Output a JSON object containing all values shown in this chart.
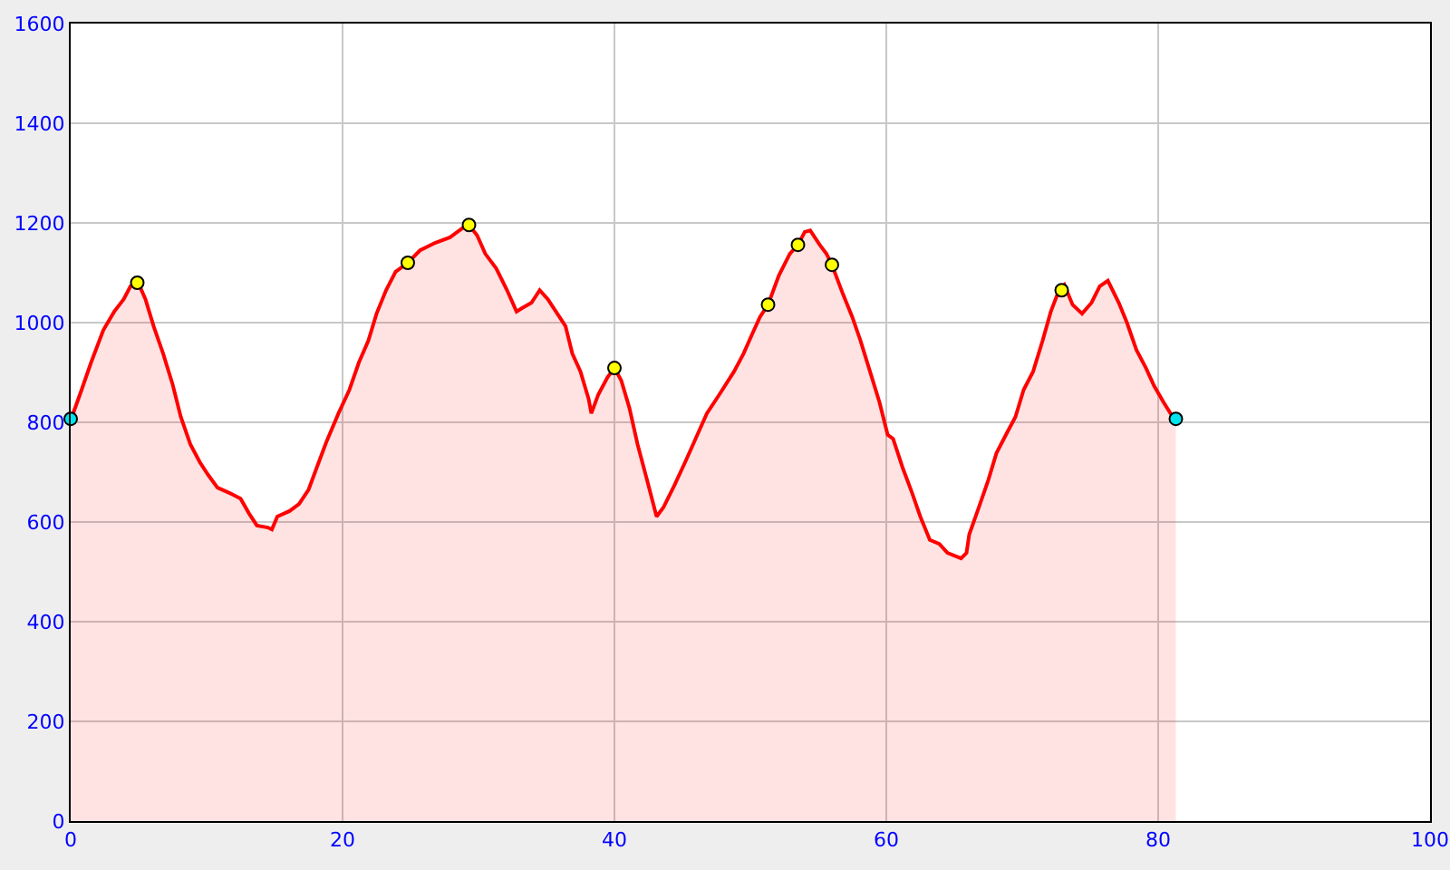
{
  "chart_data": {
    "type": "area",
    "xlim": [
      0,
      100
    ],
    "xticks": [
      0,
      20,
      40,
      60,
      80,
      100
    ],
    "ylim": [
      0,
      1600
    ],
    "yticks": [
      0,
      200,
      400,
      600,
      800,
      1000,
      1200,
      1400,
      1600
    ],
    "grid": true,
    "line_style": "solid",
    "series": [
      {
        "color": "#ff0000",
        "marker": "none",
        "x": [
          0,
          0.8,
          1.5,
          2.4,
          3.2,
          3.9,
          4.4,
          4.9,
          5.5,
          6.1,
          6.8,
          7.5,
          8.1,
          8.8,
          9.5,
          10.1,
          10.8,
          11.7,
          12.5,
          13.1,
          13.7,
          14.5,
          14.8,
          15.2,
          16.1,
          16.8,
          17.5,
          18.1,
          18.8,
          19.7,
          20.5,
          21.2,
          21.9,
          22.5,
          23.2,
          23.9,
          24.8,
          25.7,
          26.8,
          27.9,
          28.8,
          29.3,
          29.9,
          30.5,
          31.3,
          32.1,
          32.8,
          33.2,
          33.9,
          34.5,
          35.1,
          35.7,
          36.4,
          36.9,
          37.5,
          38.1,
          38.3,
          38.8,
          39.5,
          40.0,
          40.5,
          41.1,
          41.7,
          42.4,
          43.1,
          43.6,
          44.4,
          45.2,
          46.1,
          46.8,
          47.7,
          48.8,
          49.5,
          50.1,
          50.7,
          51.3,
          52.1,
          52.9,
          53.5,
          54.0,
          54.4,
          55.1,
          55.6,
          56.0,
          56.8,
          57.5,
          58.1,
          58.8,
          59.5,
          60.1,
          60.5,
          61.2,
          61.9,
          62.5,
          63.2,
          63.9,
          64.5,
          65.5,
          65.9,
          66.1,
          66.8,
          67.5,
          68.1,
          68.8,
          69.5,
          70.1,
          70.8,
          71.5,
          72.1,
          72.7,
          73.1,
          73.7,
          74.4,
          75.1,
          75.7,
          76.3,
          77.1,
          77.7,
          78.4,
          79.1,
          79.7,
          80.4,
          80.9,
          81.3
        ],
        "values": [
          804,
          865,
          920,
          985,
          1022,
          1047,
          1073,
          1084,
          1047,
          993,
          938,
          876,
          811,
          756,
          720,
          695,
          669,
          658,
          647,
          618,
          593,
          589,
          585,
          611,
          622,
          636,
          665,
          709,
          760,
          818,
          865,
          920,
          964,
          1018,
          1065,
          1102,
          1120,
          1145,
          1160,
          1171,
          1189,
          1196,
          1175,
          1138,
          1109,
          1065,
          1022,
          1029,
          1040,
          1065,
          1047,
          1022,
          993,
          938,
          902,
          847,
          818,
          855,
          891,
          909,
          884,
          829,
          756,
          684,
          611,
          629,
          673,
          720,
          775,
          818,
          855,
          902,
          938,
          975,
          1011,
          1036,
          1095,
          1138,
          1156,
          1182,
          1185,
          1156,
          1138,
          1116,
          1058,
          1011,
          964,
          902,
          840,
          775,
          767,
          709,
          658,
          611,
          564,
          556,
          538,
          527,
          538,
          575,
          629,
          684,
          738,
          775,
          811,
          865,
          902,
          964,
          1022,
          1065,
          1076,
          1036,
          1018,
          1040,
          1073,
          1084,
          1040,
          1000,
          945,
          909,
          873,
          840,
          818,
          807
        ]
      },
      {
        "type": "scatter",
        "color": "#ffff00",
        "marker": "circle",
        "x": [
          4.9,
          24.8,
          29.3,
          40.0,
          51.3,
          53.5,
          56.0,
          72.9
        ],
        "values": [
          1080,
          1120,
          1196,
          909,
          1036,
          1156,
          1116,
          1065
        ]
      },
      {
        "type": "scatter",
        "color": "#00e5ee",
        "marker": "circle",
        "x": [
          0,
          81.3
        ],
        "values": [
          807,
          807
        ]
      }
    ]
  }
}
